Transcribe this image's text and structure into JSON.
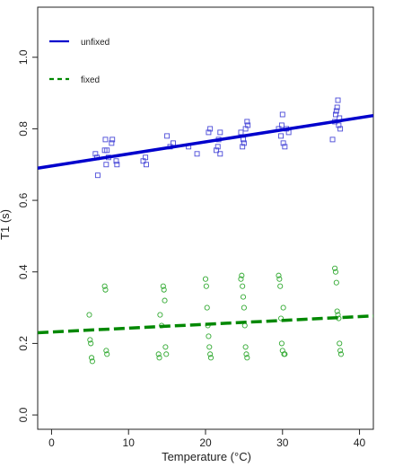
{
  "chart_data": {
    "type": "scatter",
    "title": "",
    "xlabel": "Temperature (°C)",
    "ylabel": "T1 (s)",
    "xlim": [
      -1.8,
      41.8
    ],
    "ylim": [
      -0.04,
      1.14
    ],
    "x_ticks": [
      0,
      10,
      20,
      30,
      40
    ],
    "x_tick_labels": [
      "0",
      "10",
      "20",
      "30",
      "40"
    ],
    "y_ticks": [
      0.0,
      0.2,
      0.4,
      0.6,
      0.8,
      1.0
    ],
    "y_tick_labels": [
      "0.0",
      "0.2",
      "0.4",
      "0.6",
      "0.8",
      "1.0"
    ],
    "grid": false,
    "legend_position": "top-left",
    "legend": [
      {
        "label": "unfixed",
        "color": "#0000cc",
        "style": "solid"
      },
      {
        "label": "fixed",
        "color": "#008800",
        "style": "dashed"
      }
    ],
    "series": [
      {
        "name": "unfixed",
        "color": "#4a4ad8",
        "marker": "square",
        "points": [
          [
            5.7,
            0.73
          ],
          [
            5.9,
            0.72
          ],
          [
            6.0,
            0.67
          ],
          [
            6.9,
            0.74
          ],
          [
            7.0,
            0.77
          ],
          [
            7.1,
            0.7
          ],
          [
            7.2,
            0.74
          ],
          [
            7.4,
            0.72
          ],
          [
            7.8,
            0.76
          ],
          [
            7.9,
            0.77
          ],
          [
            8.4,
            0.71
          ],
          [
            8.5,
            0.7
          ],
          [
            11.9,
            0.71
          ],
          [
            12.2,
            0.72
          ],
          [
            12.3,
            0.7
          ],
          [
            15.0,
            0.78
          ],
          [
            15.4,
            0.75
          ],
          [
            15.8,
            0.76
          ],
          [
            17.8,
            0.75
          ],
          [
            18.9,
            0.73
          ],
          [
            20.4,
            0.79
          ],
          [
            20.6,
            0.8
          ],
          [
            21.4,
            0.74
          ],
          [
            21.6,
            0.75
          ],
          [
            21.7,
            0.77
          ],
          [
            21.9,
            0.79
          ],
          [
            21.9,
            0.73
          ],
          [
            24.6,
            0.79
          ],
          [
            24.8,
            0.75
          ],
          [
            24.9,
            0.77
          ],
          [
            25.0,
            0.76
          ],
          [
            25.2,
            0.8
          ],
          [
            25.5,
            0.81
          ],
          [
            25.4,
            0.82
          ],
          [
            29.5,
            0.8
          ],
          [
            29.8,
            0.78
          ],
          [
            30.0,
            0.84
          ],
          [
            30.1,
            0.76
          ],
          [
            30.3,
            0.75
          ],
          [
            30.5,
            0.8
          ],
          [
            30.8,
            0.79
          ],
          [
            29.9,
            0.81
          ],
          [
            36.5,
            0.77
          ],
          [
            36.8,
            0.82
          ],
          [
            36.9,
            0.84
          ],
          [
            37.0,
            0.85
          ],
          [
            37.1,
            0.86
          ],
          [
            37.2,
            0.88
          ],
          [
            37.3,
            0.81
          ],
          [
            37.4,
            0.83
          ],
          [
            37.5,
            0.8
          ]
        ],
        "fit": {
          "x": [
            -1.8,
            41.8
          ],
          "y": [
            0.69,
            0.837
          ]
        }
      },
      {
        "name": "fixed",
        "color": "#33aa33",
        "marker": "circle",
        "points": [
          [
            4.9,
            0.28
          ],
          [
            5.0,
            0.21
          ],
          [
            5.1,
            0.2
          ],
          [
            5.2,
            0.16
          ],
          [
            5.3,
            0.15
          ],
          [
            6.9,
            0.36
          ],
          [
            7.0,
            0.35
          ],
          [
            7.1,
            0.18
          ],
          [
            7.2,
            0.17
          ],
          [
            13.9,
            0.17
          ],
          [
            14.0,
            0.16
          ],
          [
            14.1,
            0.28
          ],
          [
            14.3,
            0.25
          ],
          [
            14.5,
            0.36
          ],
          [
            14.6,
            0.35
          ],
          [
            14.7,
            0.32
          ],
          [
            14.8,
            0.19
          ],
          [
            14.9,
            0.17
          ],
          [
            20.0,
            0.38
          ],
          [
            20.1,
            0.36
          ],
          [
            20.2,
            0.3
          ],
          [
            20.3,
            0.25
          ],
          [
            20.4,
            0.22
          ],
          [
            20.5,
            0.19
          ],
          [
            20.6,
            0.17
          ],
          [
            20.7,
            0.16
          ],
          [
            24.6,
            0.38
          ],
          [
            24.7,
            0.39
          ],
          [
            24.8,
            0.36
          ],
          [
            24.9,
            0.33
          ],
          [
            25.0,
            0.3
          ],
          [
            25.1,
            0.25
          ],
          [
            25.2,
            0.19
          ],
          [
            25.3,
            0.17
          ],
          [
            25.4,
            0.16
          ],
          [
            29.5,
            0.39
          ],
          [
            29.6,
            0.38
          ],
          [
            29.7,
            0.36
          ],
          [
            29.8,
            0.27
          ],
          [
            29.9,
            0.2
          ],
          [
            30.0,
            0.18
          ],
          [
            30.1,
            0.3
          ],
          [
            30.2,
            0.17
          ],
          [
            30.3,
            0.17
          ],
          [
            36.8,
            0.41
          ],
          [
            36.9,
            0.4
          ],
          [
            37.0,
            0.37
          ],
          [
            37.1,
            0.29
          ],
          [
            37.2,
            0.28
          ],
          [
            37.3,
            0.27
          ],
          [
            37.4,
            0.2
          ],
          [
            37.5,
            0.18
          ],
          [
            37.6,
            0.17
          ]
        ],
        "fit": {
          "x": [
            -1.8,
            41.8
          ],
          "y": [
            0.23,
            0.277
          ]
        }
      }
    ]
  }
}
